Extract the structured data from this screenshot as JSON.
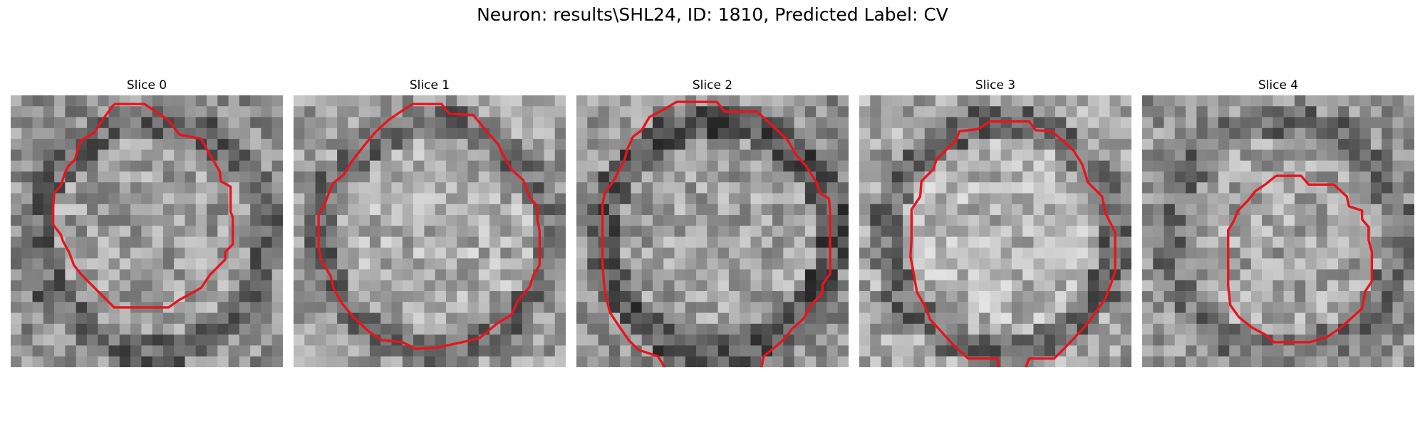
{
  "figure": {
    "title": "Neuron: results\\SHL24, ID: 1810, Predicted Label: CV",
    "outline_color": "#e8141c",
    "colormap": "grayscale",
    "grid_size": 25
  },
  "panels": [
    {
      "title": "Slice 0",
      "seed": 11,
      "center_brightness": 0.62,
      "dark_ring": 0.22
    },
    {
      "title": "Slice 1",
      "seed": 23,
      "center_brightness": 0.68,
      "dark_ring": 0.25
    },
    {
      "title": "Slice 2",
      "seed": 37,
      "center_brightness": 0.63,
      "dark_ring": 0.3
    },
    {
      "title": "Slice 3",
      "seed": 41,
      "center_brightness": 0.7,
      "dark_ring": 0.28
    },
    {
      "title": "Slice 4",
      "seed": 59,
      "center_brightness": 0.64,
      "dark_ring": 0.2
    }
  ]
}
